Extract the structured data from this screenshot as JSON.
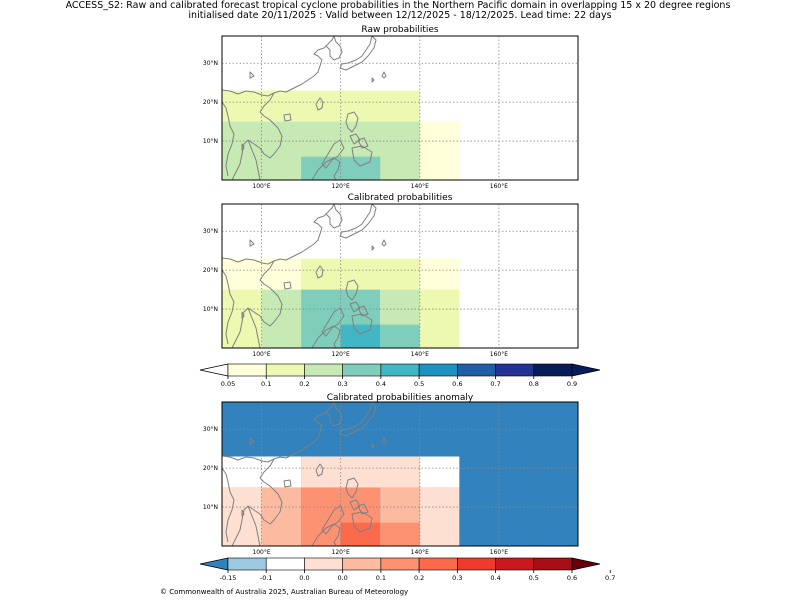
{
  "header": {
    "line1": "ACCESS_S2: Raw and calibrated forecast tropical cyclone probabilities in the Northern Pacific domain in overlapping 15 x 20 degree regions",
    "line2": "initialised date 20/11/2025 :  Valid between 12/12/2025 - 18/12/2025. Lead time: 22 days"
  },
  "footer": {
    "copyright": "© Commonwealth of Australia 2025, Australian Bureau of Meteorology"
  },
  "colors": {
    "prob": [
      "#ffffd9",
      "#edf8b1",
      "#c7e9b4",
      "#7fcdbb",
      "#41b6c4",
      "#1d91c0",
      "#225ea8",
      "#253494",
      "#081d58"
    ],
    "prob_under": "#ffffff",
    "anom_under": "#3182bd",
    "anom": [
      "#9ecae1",
      "#ffffff",
      "#fee0d2",
      "#fcbba1",
      "#fc9272",
      "#fb6a4a",
      "#ef3b2c",
      "#cb181d",
      "#a50f15"
    ],
    "anom_over": "#67000d",
    "coast": "#808080",
    "grid": "#888888"
  },
  "chart_data": [
    {
      "type": "heatmap",
      "title": "Raw probabilities",
      "xlim": [
        90,
        180
      ],
      "ylim": [
        0,
        37
      ],
      "xticks": [
        100,
        120,
        140,
        160
      ],
      "xticklabels": [
        "100°E",
        "120°E",
        "140°E",
        "160°E"
      ],
      "yticks": [
        10,
        20,
        30
      ],
      "yticklabels": [
        "10°N",
        "20°N",
        "30°N"
      ],
      "cells": [
        {
          "lon": [
            90,
            140
          ],
          "lat": [
            15,
            23
          ],
          "value": 0.15
        },
        {
          "lon": [
            90,
            140
          ],
          "lat": [
            0,
            15
          ],
          "value": 0.25
        },
        {
          "lon": [
            140,
            150
          ],
          "lat": [
            0,
            15
          ],
          "value": 0.07
        },
        {
          "lon": [
            110,
            130
          ],
          "lat": [
            0,
            6
          ],
          "value": 0.35
        }
      ]
    },
    {
      "type": "heatmap",
      "title": "Calibrated probabilities",
      "xlim": [
        90,
        180
      ],
      "ylim": [
        0,
        37
      ],
      "xticks": [
        100,
        120,
        140,
        160
      ],
      "xticklabels": [
        "100°E",
        "120°E",
        "140°E",
        "160°E"
      ],
      "yticks": [
        10,
        20,
        30
      ],
      "yticklabels": [
        "10°N",
        "20°N",
        "30°N"
      ],
      "cells": [
        {
          "lon": [
            90,
            110
          ],
          "lat": [
            15,
            23
          ],
          "value": 0.07
        },
        {
          "lon": [
            110,
            140
          ],
          "lat": [
            15,
            23
          ],
          "value": 0.15
        },
        {
          "lon": [
            140,
            150
          ],
          "lat": [
            15,
            23
          ],
          "value": 0.07
        },
        {
          "lon": [
            90,
            100
          ],
          "lat": [
            0,
            15
          ],
          "value": 0.15
        },
        {
          "lon": [
            100,
            110
          ],
          "lat": [
            0,
            15
          ],
          "value": 0.25
        },
        {
          "lon": [
            110,
            130
          ],
          "lat": [
            0,
            15
          ],
          "value": 0.35
        },
        {
          "lon": [
            130,
            140
          ],
          "lat": [
            0,
            15
          ],
          "value": 0.25
        },
        {
          "lon": [
            140,
            150
          ],
          "lat": [
            0,
            15
          ],
          "value": 0.15
        },
        {
          "lon": [
            120,
            130
          ],
          "lat": [
            0,
            6
          ],
          "value": 0.45
        },
        {
          "lon": [
            130,
            140
          ],
          "lat": [
            0,
            6
          ],
          "value": 0.35
        }
      ],
      "colorbar": {
        "bounds": [
          0.05,
          0.1,
          0.2,
          0.3,
          0.4,
          0.5,
          0.6,
          0.7,
          0.8,
          0.9
        ],
        "labels": [
          "0.05",
          "0.1",
          "0.2",
          "0.3",
          "0.4",
          "0.5",
          "0.6",
          "0.7",
          "0.8",
          "0.9"
        ]
      }
    },
    {
      "type": "heatmap",
      "title": "Calibrated probabilities anomaly",
      "xlim": [
        90,
        180
      ],
      "ylim": [
        0,
        37
      ],
      "xticks": [
        100,
        120,
        140,
        160
      ],
      "xticklabels": [
        "100°E",
        "120°E",
        "140°E",
        "160°E"
      ],
      "yticks": [
        10,
        20,
        30
      ],
      "yticklabels": [
        "10°N",
        "20°N",
        "30°N"
      ],
      "cells": [
        {
          "lon": [
            90,
            180
          ],
          "lat": [
            0,
            37
          ],
          "value": -0.2
        },
        {
          "lon": [
            90,
            110
          ],
          "lat": [
            15,
            23
          ],
          "value": -0.08
        },
        {
          "lon": [
            110,
            140
          ],
          "lat": [
            15,
            23
          ],
          "value": 0.0
        },
        {
          "lon": [
            140,
            150
          ],
          "lat": [
            15,
            23
          ],
          "value": -0.08
        },
        {
          "lon": [
            90,
            100
          ],
          "lat": [
            0,
            15
          ],
          "value": 0.0
        },
        {
          "lon": [
            100,
            110
          ],
          "lat": [
            0,
            15
          ],
          "value": 0.05
        },
        {
          "lon": [
            110,
            130
          ],
          "lat": [
            0,
            15
          ],
          "value": 0.15
        },
        {
          "lon": [
            130,
            140
          ],
          "lat": [
            0,
            15
          ],
          "value": 0.05
        },
        {
          "lon": [
            140,
            150
          ],
          "lat": [
            0,
            15
          ],
          "value": 0.0
        },
        {
          "lon": [
            120,
            130
          ],
          "lat": [
            0,
            6
          ],
          "value": 0.25
        },
        {
          "lon": [
            130,
            140
          ],
          "lat": [
            0,
            6
          ],
          "value": 0.15
        }
      ],
      "colorbar": {
        "bounds": [
          -0.15,
          -0.1,
          0.0,
          0.0,
          0.1,
          0.2,
          0.3,
          0.4,
          0.5,
          0.6,
          0.7
        ],
        "labels": [
          "-0.15",
          "-0.1",
          "0.0",
          "0.0",
          "0.1",
          "0.2",
          "0.3",
          "0.4",
          "0.5",
          "0.6",
          "0.7"
        ]
      }
    }
  ]
}
